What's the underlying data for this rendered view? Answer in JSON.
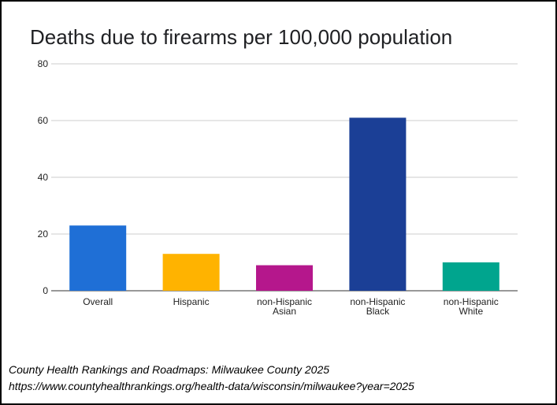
{
  "title": "Deaths due to firearms per 100,000 population",
  "source": {
    "line1": "County Health Rankings and Roadmaps: Milwaukee County 2025",
    "line2": "https://www.countyhealthrankings.org/health-data/wisconsin/milwaukee?year=2025"
  },
  "chart_data": {
    "type": "bar",
    "title": "Deaths due to firearms per 100,000 population",
    "categories": [
      [
        "Overall"
      ],
      [
        "Hispanic"
      ],
      [
        "non-Hispanic",
        "Asian"
      ],
      [
        "non-Hispanic",
        "Black"
      ],
      [
        "non-Hispanic",
        "White"
      ]
    ],
    "values": [
      23,
      13,
      9,
      61,
      10
    ],
    "colors": [
      "#1f6fd6",
      "#ffb300",
      "#b5178c",
      "#1b3f96",
      "#00a58e"
    ],
    "ylim": [
      0,
      80
    ],
    "yticks": [
      0,
      20,
      40,
      60,
      80
    ],
    "grid": true,
    "legend": "none"
  }
}
